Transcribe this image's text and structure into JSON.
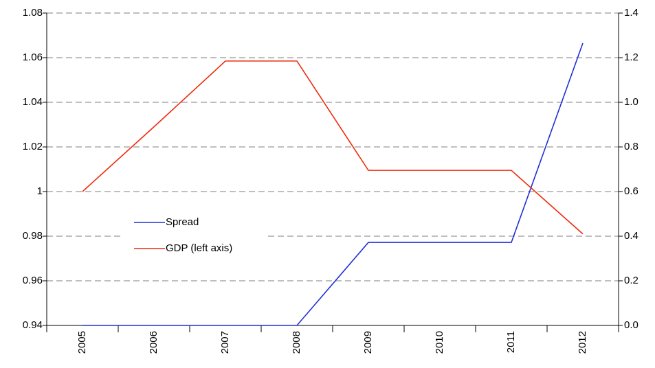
{
  "chart_data": {
    "type": "line",
    "categories": [
      "2005",
      "2006",
      "2007",
      "2008",
      "2009",
      "2010",
      "2011",
      "2012"
    ],
    "series": [
      {
        "name": "Spread",
        "color": "#1f2fd6",
        "axis": "y2",
        "values": [
          0,
          0,
          0,
          0,
          0.372,
          0.372,
          0.372,
          1.265
        ]
      },
      {
        "name": "GDP (left axis)",
        "color": "#ee2a0b",
        "values": [
          1.0,
          1.029,
          1.0585,
          1.0585,
          1.0095,
          1.0095,
          1.0095,
          0.981
        ]
      }
    ],
    "ylim": [
      0.94,
      1.08
    ],
    "yticks": [
      0.94,
      0.96,
      0.98,
      1,
      1.02,
      1.04,
      1.06,
      1.08
    ],
    "y2lim": [
      0,
      1.4
    ],
    "y2ticks": [
      {
        "value": 0,
        "label": "0.0"
      },
      0.2,
      0.4,
      0.6,
      0.8,
      {
        "value": 1,
        "label": "1.0"
      },
      1.2,
      1.4
    ],
    "grid": true
  }
}
